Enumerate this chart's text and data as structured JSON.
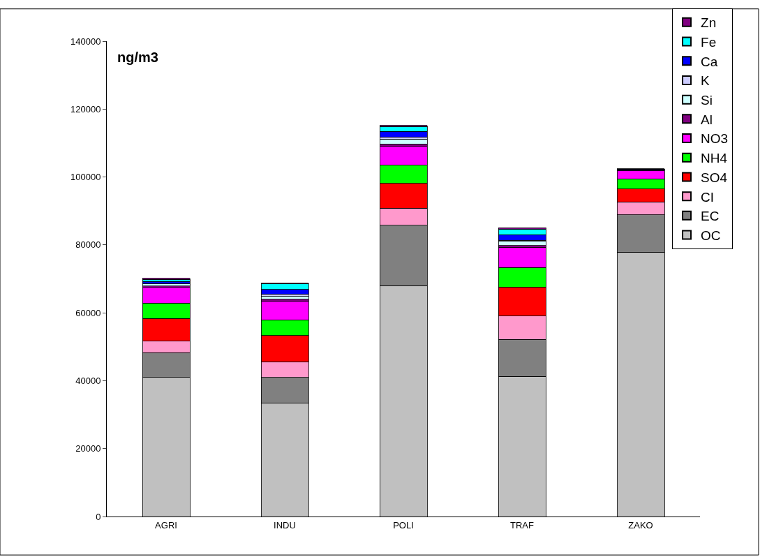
{
  "chart_data": {
    "type": "bar",
    "stacked": true,
    "categories": [
      "AGRI",
      "INDU",
      "POLI",
      "TRAF",
      "ZAKO"
    ],
    "series": [
      {
        "name": "OC",
        "color": "#c0c0c0",
        "values": [
          41000,
          33400,
          68000,
          41300,
          77900
        ]
      },
      {
        "name": "EC",
        "color": "#808080",
        "values": [
          7300,
          7600,
          17800,
          10900,
          11000
        ]
      },
      {
        "name": "CI",
        "color": "#ff99cc",
        "values": [
          3400,
          4600,
          5000,
          6900,
          3800
        ]
      },
      {
        "name": "SO4",
        "color": "#ff0000",
        "values": [
          6600,
          7700,
          7300,
          8500,
          3800
        ]
      },
      {
        "name": "NH4",
        "color": "#00ff00",
        "values": [
          4600,
          4600,
          5400,
          5700,
          3000
        ]
      },
      {
        "name": "NO3",
        "color": "#ff00ff",
        "values": [
          4600,
          5600,
          5600,
          6000,
          2300
        ]
      },
      {
        "name": "Al",
        "color": "#800080",
        "values": [
          400,
          500,
          600,
          500,
          200
        ]
      },
      {
        "name": "Si",
        "color": "#ccffff",
        "values": [
          700,
          800,
          1500,
          1200,
          null
        ]
      },
      {
        "name": "K",
        "color": "#ccccff",
        "values": [
          null,
          600,
          500,
          400,
          null
        ]
      },
      {
        "name": "Ca",
        "color": "#0000ff",
        "values": [
          600,
          1500,
          1700,
          1600,
          200
        ]
      },
      {
        "name": "Fe",
        "color": "#00ffff",
        "values": [
          600,
          1600,
          1500,
          1700,
          100
        ]
      },
      {
        "name": "Zn",
        "color": "#800080",
        "values": [
          400,
          200,
          300,
          400,
          100
        ]
      }
    ],
    "ylim": [
      0,
      140000
    ],
    "yticks": [
      0,
      20000,
      40000,
      60000,
      80000,
      100000,
      120000,
      140000
    ],
    "annotations": [
      "ng/m3"
    ],
    "grid": false,
    "legend": "top right"
  }
}
